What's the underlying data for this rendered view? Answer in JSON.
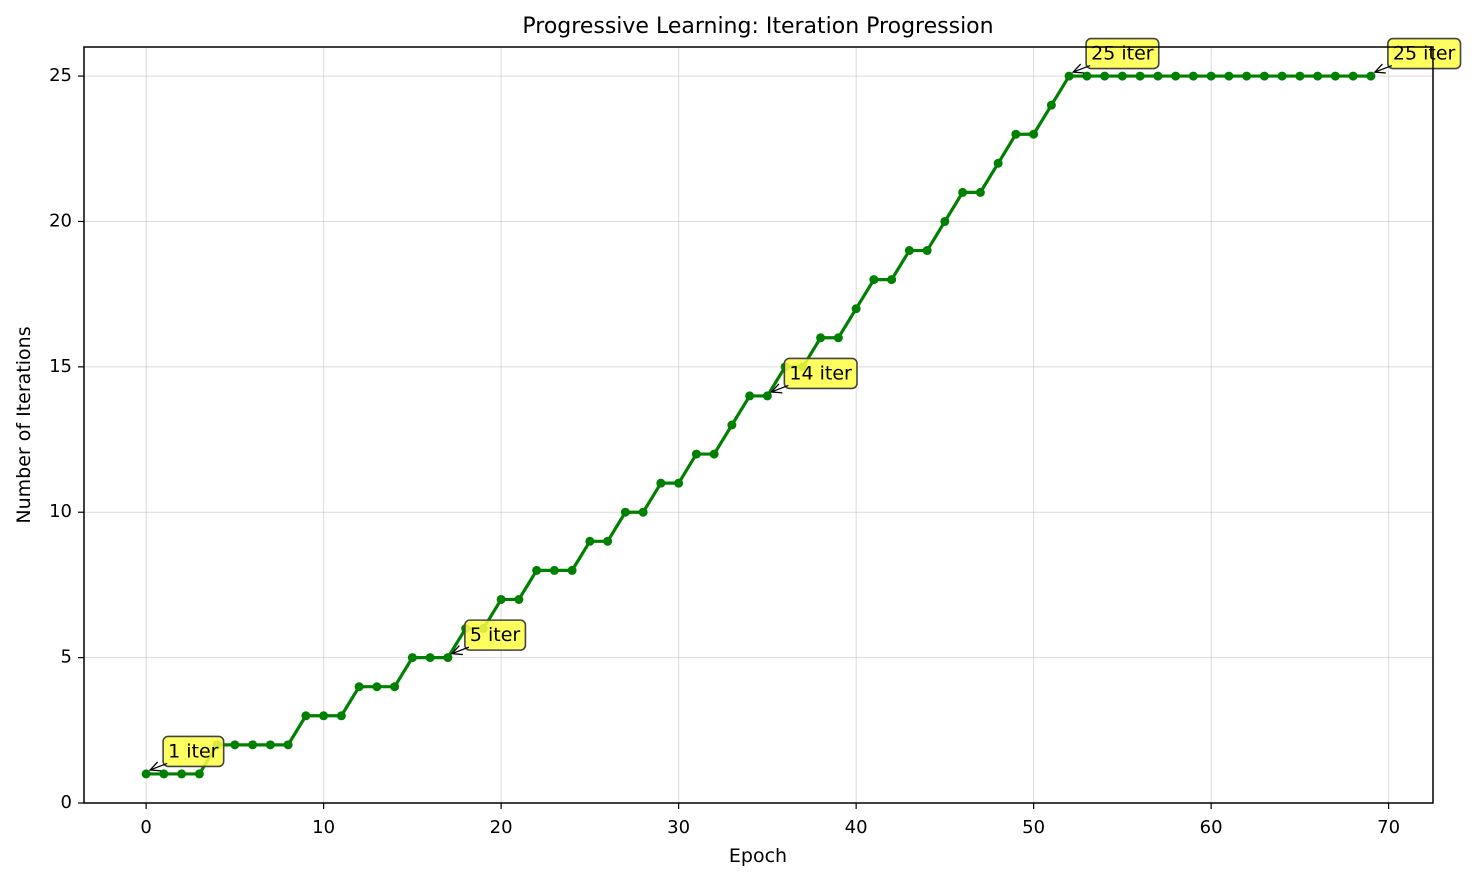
{
  "chart_data": {
    "type": "line",
    "title": "Progressive Learning: Iteration Progression",
    "xlabel": "Epoch",
    "ylabel": "Number of Iterations",
    "xlim": [
      -3.5,
      72.5
    ],
    "ylim": [
      0,
      26
    ],
    "xticks": [
      0,
      10,
      20,
      30,
      40,
      50,
      60,
      70
    ],
    "yticks": [
      0,
      5,
      10,
      15,
      20,
      25
    ],
    "grid": true,
    "legend": "none",
    "series": [
      {
        "color": "#008000",
        "marker": "circle",
        "x": [
          0,
          1,
          2,
          3,
          4,
          5,
          6,
          7,
          8,
          9,
          10,
          11,
          12,
          13,
          14,
          15,
          16,
          17,
          18,
          19,
          20,
          21,
          22,
          23,
          24,
          25,
          26,
          27,
          28,
          29,
          30,
          31,
          32,
          33,
          34,
          35,
          36,
          37,
          38,
          39,
          40,
          41,
          42,
          43,
          44,
          45,
          46,
          47,
          48,
          49,
          50,
          51,
          52,
          53,
          54,
          55,
          56,
          57,
          58,
          59,
          60,
          61,
          62,
          63,
          64,
          65,
          66,
          67,
          68,
          69
        ],
        "y": [
          1,
          1,
          1,
          1,
          2,
          2,
          2,
          2,
          2,
          3,
          3,
          3,
          4,
          4,
          4,
          5,
          5,
          5,
          6,
          6,
          7,
          7,
          8,
          8,
          8,
          9,
          9,
          10,
          10,
          11,
          11,
          12,
          12,
          13,
          14,
          14,
          15,
          15,
          16,
          16,
          17,
          18,
          18,
          19,
          19,
          20,
          21,
          21,
          22,
          23,
          23,
          24,
          25,
          25,
          25,
          25,
          25,
          25,
          25,
          25,
          25,
          25,
          25,
          25,
          25,
          25,
          25,
          25,
          25,
          25
        ]
      }
    ],
    "annotations": [
      {
        "text": "1 iter",
        "x": 0,
        "y": 1
      },
      {
        "text": "5 iter",
        "x": 17,
        "y": 5
      },
      {
        "text": "14 iter",
        "x": 35,
        "y": 14
      },
      {
        "text": "25 iter",
        "x": 52,
        "y": 25
      },
      {
        "text": "25 iter",
        "x": 69,
        "y": 25
      }
    ],
    "annotation_style": {
      "box_color": "#ffff44",
      "border_color": "#444444"
    }
  }
}
